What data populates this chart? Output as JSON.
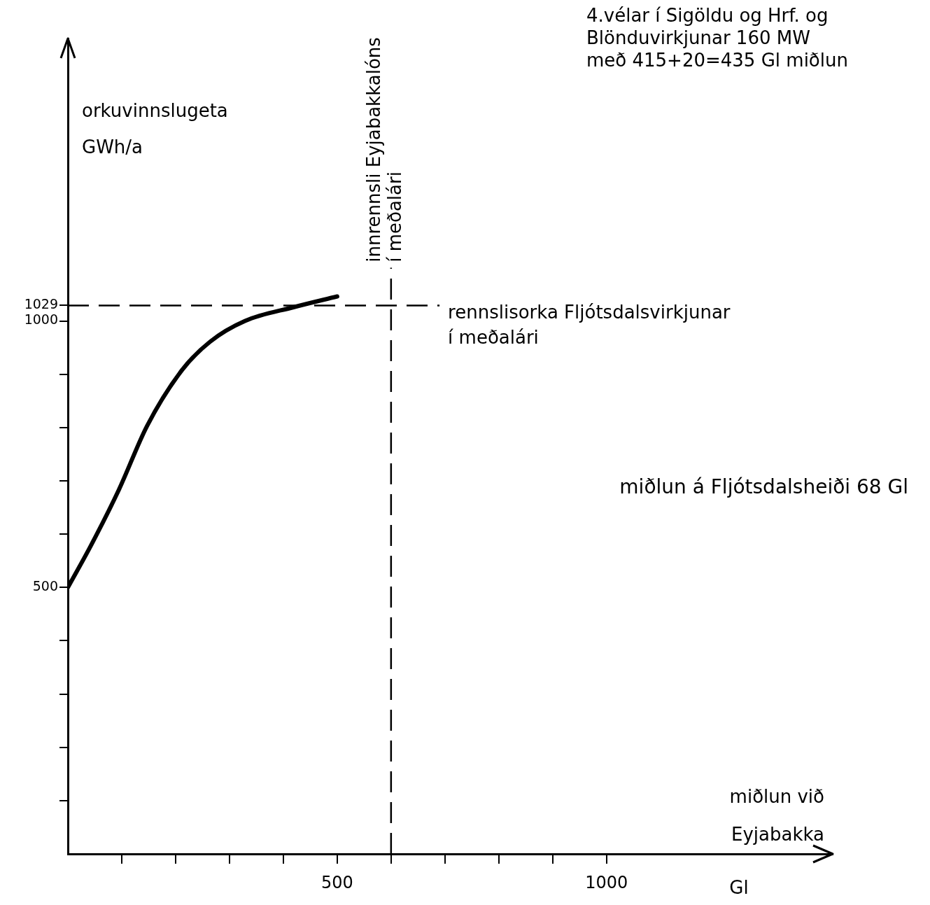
{
  "chart_data": {
    "type": "line",
    "xlabel": "miðlun við\nEyjabakka",
    "ylabel": "orkuvinnslugeta\nGWh/a",
    "annotations": [
      "4.vélar í Sigöldu og Hrf. og\nBlönduvirkjunar 160 MW\nmeð 415+20=435 Gl miðlun",
      "miðlun á Fljótsdalsheiði 68 Gl",
      "Gl"
    ],
    "x": [
      0,
      43,
      95,
      147,
      212,
      264,
      329,
      420,
      500
    ],
    "series": [
      {
        "color": "#000000",
        "values": [
          500,
          579,
          684,
          803,
          908,
          961,
          1000,
          1026,
          1046
        ]
      }
    ],
    "xlim": [
      0,
      1420
    ],
    "ylim": [
      0,
      1530
    ],
    "xticks": [
      {
        "value": 100,
        "label": null
      },
      {
        "value": 200,
        "label": null
      },
      {
        "value": 300,
        "label": null
      },
      {
        "value": 400,
        "label": null
      },
      500,
      {
        "value": 600,
        "label": null
      },
      {
        "value": 700,
        "label": null
      },
      {
        "value": 800,
        "label": null
      },
      {
        "value": 900,
        "label": null
      },
      1000
    ],
    "yticks": [
      {
        "value": 100,
        "label": null
      },
      {
        "value": 200,
        "label": null
      },
      {
        "value": 300,
        "label": null
      },
      {
        "value": 400,
        "label": null
      },
      500,
      {
        "value": 600,
        "label": null
      },
      {
        "value": 700,
        "label": null
      },
      {
        "value": 800,
        "label": null
      },
      {
        "value": 900,
        "label": null
      },
      1000,
      1029
    ],
    "ref_lines": [
      {
        "axis": "y",
        "value": 1029,
        "label": "rennslisorka Fljótsdalsvirkjunar\ní meðalári",
        "line_style": "dashed"
      },
      {
        "axis": "x",
        "value": 600,
        "label": "innrennsli Eyjabakkalóns\ní meðalári",
        "line_style": "dashed"
      }
    ],
    "grid": false,
    "legend": false,
    "marker": "none",
    "line_style": "solid"
  }
}
